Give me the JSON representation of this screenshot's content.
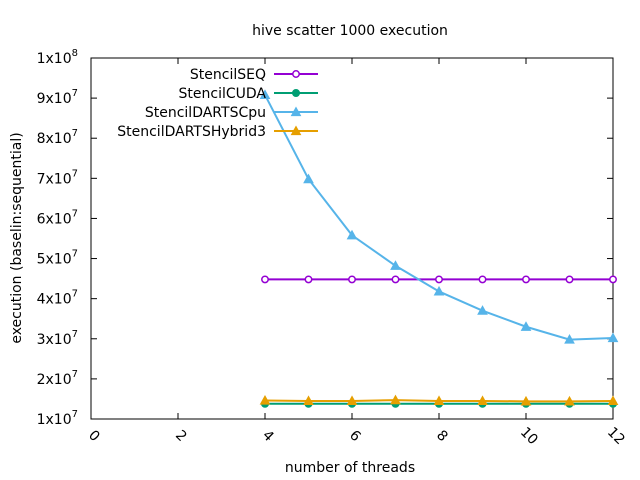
{
  "chart_data": {
    "type": "line",
    "title": "hive scatter 1000 execution",
    "xlabel": "number of threads",
    "ylabel": "execution (baselin:sequential)",
    "xlim": [
      0,
      12
    ],
    "ylim": [
      10000000,
      100000000
    ],
    "x_ticks": [
      0,
      2,
      4,
      6,
      8,
      10,
      12
    ],
    "y_ticks": [
      {
        "value": 10000000,
        "mantissa": "1x10",
        "exp": "7"
      },
      {
        "value": 20000000,
        "mantissa": "2x10",
        "exp": "7"
      },
      {
        "value": 30000000,
        "mantissa": "3x10",
        "exp": "7"
      },
      {
        "value": 40000000,
        "mantissa": "4x10",
        "exp": "7"
      },
      {
        "value": 50000000,
        "mantissa": "5x10",
        "exp": "7"
      },
      {
        "value": 60000000,
        "mantissa": "6x10",
        "exp": "7"
      },
      {
        "value": 70000000,
        "mantissa": "7x10",
        "exp": "7"
      },
      {
        "value": 80000000,
        "mantissa": "8x10",
        "exp": "7"
      },
      {
        "value": 90000000,
        "mantissa": "9x10",
        "exp": "7"
      },
      {
        "value": 100000000,
        "mantissa": "1x10",
        "exp": "8"
      }
    ],
    "x": [
      4,
      5,
      6,
      7,
      8,
      9,
      10,
      11,
      12
    ],
    "legend_position": "top-left",
    "series": [
      {
        "name": "StencilSEQ",
        "color": "#9400d3",
        "marker": "circle",
        "values": [
          44800000,
          44800000,
          44800000,
          44800000,
          44800000,
          44800000,
          44800000,
          44800000,
          44800000
        ]
      },
      {
        "name": "StencilCUDA",
        "color": "#009e73",
        "marker": "filled-circle",
        "values": [
          13800000,
          13800000,
          13800000,
          13800000,
          13800000,
          13800000,
          13800000,
          13800000,
          13800000
        ]
      },
      {
        "name": "StencilDARTSCpu",
        "color": "#56b4e9",
        "marker": "filled-triangle",
        "values": [
          90800000,
          69800000,
          55800000,
          48200000,
          41800000,
          37000000,
          33000000,
          29800000,
          30200000
        ]
      },
      {
        "name": "StencilDARTSHybrid3",
        "color": "#e69f00",
        "marker": "filled-triangle",
        "values": [
          14600000,
          14500000,
          14500000,
          14700000,
          14500000,
          14500000,
          14400000,
          14400000,
          14500000
        ]
      }
    ]
  }
}
